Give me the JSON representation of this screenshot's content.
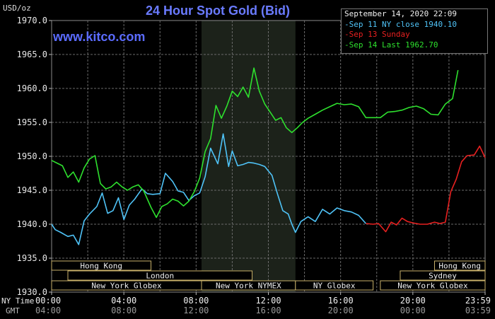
{
  "header": {
    "unit": "USD/oz",
    "title": "24 Hour Spot Gold (Bid)",
    "brand": "www.kitco.com"
  },
  "legend": {
    "date": "September 14, 2020 22:09",
    "items": [
      {
        "label": "Sep 11 NY close 1940.10",
        "color": "#4fc3f7"
      },
      {
        "label": "Sep 13 Sunday",
        "color": "#e82020"
      },
      {
        "label": "Sep 14 Last 1962.70",
        "color": "#2ee02e"
      }
    ]
  },
  "time_rows": {
    "ny_label": "NY Time",
    "gmt_label": "GMT",
    "ny_ticks": [
      "00:00",
      "04:00",
      "08:00",
      "12:00",
      "16:00",
      "20:00",
      "23:59"
    ],
    "gmt_ticks": [
      "04:00",
      "08:00",
      "12:00",
      "16:00",
      "20:00",
      "00:00",
      "03:59"
    ]
  },
  "sessions": [
    {
      "label": "Hong Kong",
      "start": -4,
      "end": 5.5,
      "row": 0
    },
    {
      "label": "Hong Kong",
      "start": 21.2,
      "end": 24,
      "row": 0
    },
    {
      "label": "London",
      "start": 0.9,
      "end": 11.1,
      "row": 1
    },
    {
      "label": "Sydney",
      "start": 19.3,
      "end": 24,
      "row": 1
    },
    {
      "label": "New York Globex",
      "start": -4,
      "end": 8.3,
      "row": 2
    },
    {
      "label": "New York NYMEX",
      "start": 8.3,
      "end": 13.5,
      "row": 2
    },
    {
      "label": "NY Globex",
      "start": 13.5,
      "end": 17.8,
      "row": 2
    },
    {
      "label": "New York Globex",
      "start": 18.2,
      "end": 24,
      "row": 2
    }
  ],
  "chart_data": {
    "type": "line",
    "title": "24 Hour Spot Gold (Bid)",
    "ylabel": "USD/oz",
    "xlabel": "NY Time / GMT",
    "x_unit": "hours (NY time)",
    "xlim": [
      0,
      24
    ],
    "ylim": [
      1930,
      1970
    ],
    "yticks": [
      1930.0,
      1935.0,
      1940.0,
      1945.0,
      1950.0,
      1955.0,
      1960.0,
      1965.0,
      1970.0
    ],
    "ytick_labels": [
      "1930.0",
      "1935.0",
      "1940.0",
      "1945.0",
      "1950.0",
      "1955.0",
      "1960.0",
      "1965.0",
      "1970.0"
    ],
    "xticks": [
      0,
      4,
      8,
      12,
      16,
      20,
      24
    ],
    "grid": true,
    "legend_position": "top-right",
    "shaded_range": [
      8.3,
      13.5
    ],
    "series": [
      {
        "name": "Sep 11 NY close 1940.10",
        "color": "#4fc3f7",
        "x": [
          0,
          0.2,
          0.5,
          0.9,
          1.2,
          1.5,
          1.8,
          2.1,
          2.5,
          2.8,
          3.1,
          3.4,
          3.7,
          4.0,
          4.3,
          4.6,
          5.0,
          5.3,
          5.6,
          6.0,
          6.3,
          6.7,
          7.0,
          7.3,
          7.6,
          7.9,
          8.2,
          8.5,
          8.8,
          9.2,
          9.5,
          9.8,
          10.0,
          10.3,
          10.6,
          10.9,
          11.2,
          11.5,
          11.8,
          12.2,
          12.5,
          12.8,
          13.1,
          13.3,
          13.5,
          13.8,
          14.2,
          14.6,
          15.0,
          15.4,
          15.8,
          16.2,
          16.6,
          17.0,
          17.4
        ],
        "y": [
          1940.0,
          1939.2,
          1938.8,
          1938.2,
          1938.4,
          1937.0,
          1940.5,
          1941.5,
          1942.6,
          1944.6,
          1941.6,
          1942.0,
          1943.9,
          1940.7,
          1942.8,
          1943.7,
          1945.2,
          1944.5,
          1944.4,
          1944.5,
          1947.5,
          1946.3,
          1944.9,
          1944.7,
          1943.5,
          1944.2,
          1944.6,
          1947.0,
          1951.2,
          1948.9,
          1953.3,
          1948.5,
          1950.8,
          1948.6,
          1948.8,
          1949.1,
          1949.0,
          1948.8,
          1948.5,
          1947.2,
          1944.5,
          1942.0,
          1941.5,
          1940.0,
          1938.8,
          1940.4,
          1941.1,
          1940.4,
          1942.2,
          1941.5,
          1942.4,
          1942.0,
          1941.8,
          1941.3,
          1940.1
        ]
      },
      {
        "name": "Sep 13 Sunday",
        "color": "#e82020",
        "x": [
          17.4,
          17.8,
          18.1,
          18.5,
          18.8,
          19.1,
          19.4,
          19.7,
          20.0,
          20.4,
          20.8,
          21.2,
          21.5,
          21.8,
          22.1,
          22.4,
          22.7,
          23.0,
          23.4,
          23.7,
          24.0
        ],
        "y": [
          1940.1,
          1940.0,
          1940.1,
          1938.9,
          1940.3,
          1939.9,
          1940.9,
          1940.4,
          1940.2,
          1940.0,
          1940.0,
          1940.3,
          1940.1,
          1940.3,
          1944.8,
          1946.6,
          1949.2,
          1950.1,
          1950.2,
          1951.5,
          1949.8
        ]
      },
      {
        "name": "Sep 14 Last 1962.70",
        "color": "#2ee02e",
        "x": [
          0,
          0.3,
          0.6,
          0.9,
          1.2,
          1.5,
          1.8,
          2.1,
          2.4,
          2.7,
          3.0,
          3.3,
          3.6,
          3.9,
          4.2,
          4.5,
          4.8,
          5.1,
          5.5,
          5.8,
          6.1,
          6.4,
          6.7,
          7.0,
          7.3,
          7.6,
          7.9,
          8.2,
          8.5,
          8.8,
          9.1,
          9.4,
          9.7,
          10.0,
          10.3,
          10.6,
          10.9,
          11.2,
          11.5,
          11.8,
          12.1,
          12.4,
          12.7,
          13.0,
          13.3,
          13.6,
          13.9,
          14.2,
          14.6,
          15.0,
          15.4,
          15.8,
          16.2,
          16.6,
          17.0,
          17.4,
          17.8,
          18.2,
          18.6,
          19.0,
          19.4,
          19.8,
          20.2,
          20.6,
          21.0,
          21.4,
          21.8,
          22.2,
          22.5
        ],
        "y": [
          1949.4,
          1949.0,
          1948.6,
          1946.9,
          1947.7,
          1946.2,
          1948.3,
          1949.6,
          1950.1,
          1946.0,
          1945.2,
          1945.5,
          1946.2,
          1945.5,
          1945.0,
          1945.5,
          1945.8,
          1944.9,
          1942.5,
          1941.0,
          1942.6,
          1943.0,
          1943.7,
          1943.4,
          1942.7,
          1943.4,
          1944.8,
          1946.8,
          1950.7,
          1952.6,
          1957.5,
          1955.6,
          1957.4,
          1959.6,
          1958.8,
          1960.2,
          1958.7,
          1963.0,
          1959.6,
          1957.7,
          1956.5,
          1955.3,
          1955.7,
          1954.2,
          1953.5,
          1954.2,
          1955.0,
          1955.6,
          1956.2,
          1956.8,
          1957.3,
          1957.8,
          1957.6,
          1957.7,
          1957.3,
          1955.7,
          1955.7,
          1955.7,
          1956.5,
          1956.6,
          1956.8,
          1957.2,
          1957.4,
          1957.0,
          1956.2,
          1956.1,
          1957.7,
          1958.5,
          1962.7
        ]
      }
    ]
  }
}
